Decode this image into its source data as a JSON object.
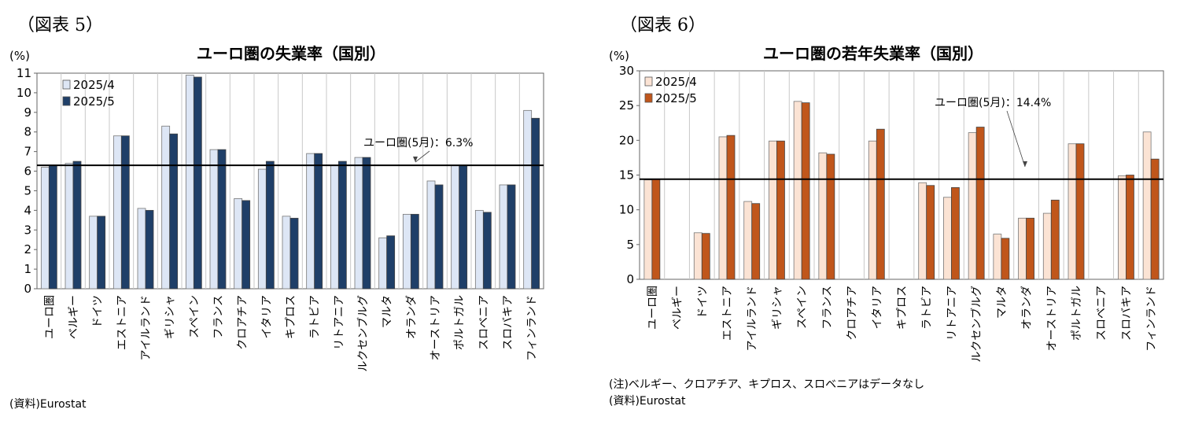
{
  "charts": {
    "left": {
      "figure_label": "（図表 5）",
      "unit_label": "(%)",
      "source": "(資料)Eurostat",
      "note": ""
    },
    "right": {
      "figure_label": "（図表 6）",
      "unit_label": "(%)",
      "source": "(資料)Eurostat",
      "note": "(注)ベルギー、クロアチア、キプロス、スロベニアはデータなし"
    }
  },
  "chart_data": [
    {
      "type": "bar",
      "title": "ユーロ圏の失業率（国別）",
      "ylabel": "(%)",
      "ylim": [
        0,
        11
      ],
      "yticks": [
        0,
        1,
        2,
        3,
        4,
        5,
        6,
        7,
        8,
        9,
        10,
        11
      ],
      "categories": [
        "ユーロ圏",
        "ベルギー",
        "ドイツ",
        "エストニア",
        "アイルランド",
        "ギリシャ",
        "スペイン",
        "フランス",
        "クロアチア",
        "イタリア",
        "キプロス",
        "ラトビア",
        "リトアニア",
        "ルクセンブルグ",
        "マルタ",
        "オランダ",
        "オーストリア",
        "ポルトガル",
        "スロベニア",
        "スロバキア",
        "フィンランド"
      ],
      "series": [
        {
          "name": "2025/4",
          "color": "#dde6f5",
          "values": [
            6.2,
            6.4,
            3.7,
            7.8,
            4.1,
            8.3,
            10.9,
            7.1,
            4.6,
            6.1,
            3.7,
            6.9,
            6.3,
            6.7,
            2.6,
            3.8,
            5.5,
            6.3,
            4.0,
            5.3,
            9.1
          ]
        },
        {
          "name": "2025/5",
          "color": "#1f3f68",
          "values": [
            6.3,
            6.5,
            3.7,
            7.8,
            4.0,
            7.9,
            10.8,
            7.1,
            4.5,
            6.5,
            3.6,
            6.9,
            6.5,
            6.7,
            2.7,
            3.8,
            5.3,
            6.3,
            3.9,
            5.3,
            8.7
          ]
        }
      ],
      "reference_line": {
        "value": 6.3,
        "label": "ユーロ圏(5月)：6.3%"
      },
      "legend_position": "top-left",
      "grid": true
    },
    {
      "type": "bar",
      "title": "ユーロ圏の若年失業率（国別）",
      "ylabel": "(%)",
      "ylim": [
        0,
        30
      ],
      "yticks": [
        0,
        5,
        10,
        15,
        20,
        25,
        30
      ],
      "categories": [
        "ユーロ圏",
        "ベルギー",
        "ドイツ",
        "エストニア",
        "アイルランド",
        "ギリシャ",
        "スペイン",
        "フランス",
        "クロアチア",
        "イタリア",
        "キプロス",
        "ラトビア",
        "リトアニア",
        "ルクセンブルグ",
        "マルタ",
        "オランダ",
        "オーストリア",
        "ポルトガル",
        "スロベニア",
        "スロバキア",
        "フィンランド"
      ],
      "series": [
        {
          "name": "2025/4",
          "color": "#fbe3d4",
          "values": [
            14.3,
            null,
            6.7,
            20.5,
            11.2,
            19.9,
            25.6,
            18.2,
            null,
            19.9,
            null,
            13.9,
            11.8,
            21.1,
            6.5,
            8.8,
            9.5,
            19.5,
            null,
            14.9,
            21.2
          ]
        },
        {
          "name": "2025/5",
          "color": "#c0561b",
          "values": [
            14.4,
            null,
            6.6,
            20.7,
            10.9,
            19.9,
            25.4,
            18.0,
            null,
            21.6,
            null,
            13.5,
            13.2,
            21.9,
            5.9,
            8.8,
            11.4,
            19.5,
            null,
            15.0,
            17.3
          ]
        }
      ],
      "reference_line": {
        "value": 14.4,
        "label": "ユーロ圏(5月)：14.4%"
      },
      "legend_position": "top-left",
      "grid": true
    }
  ]
}
